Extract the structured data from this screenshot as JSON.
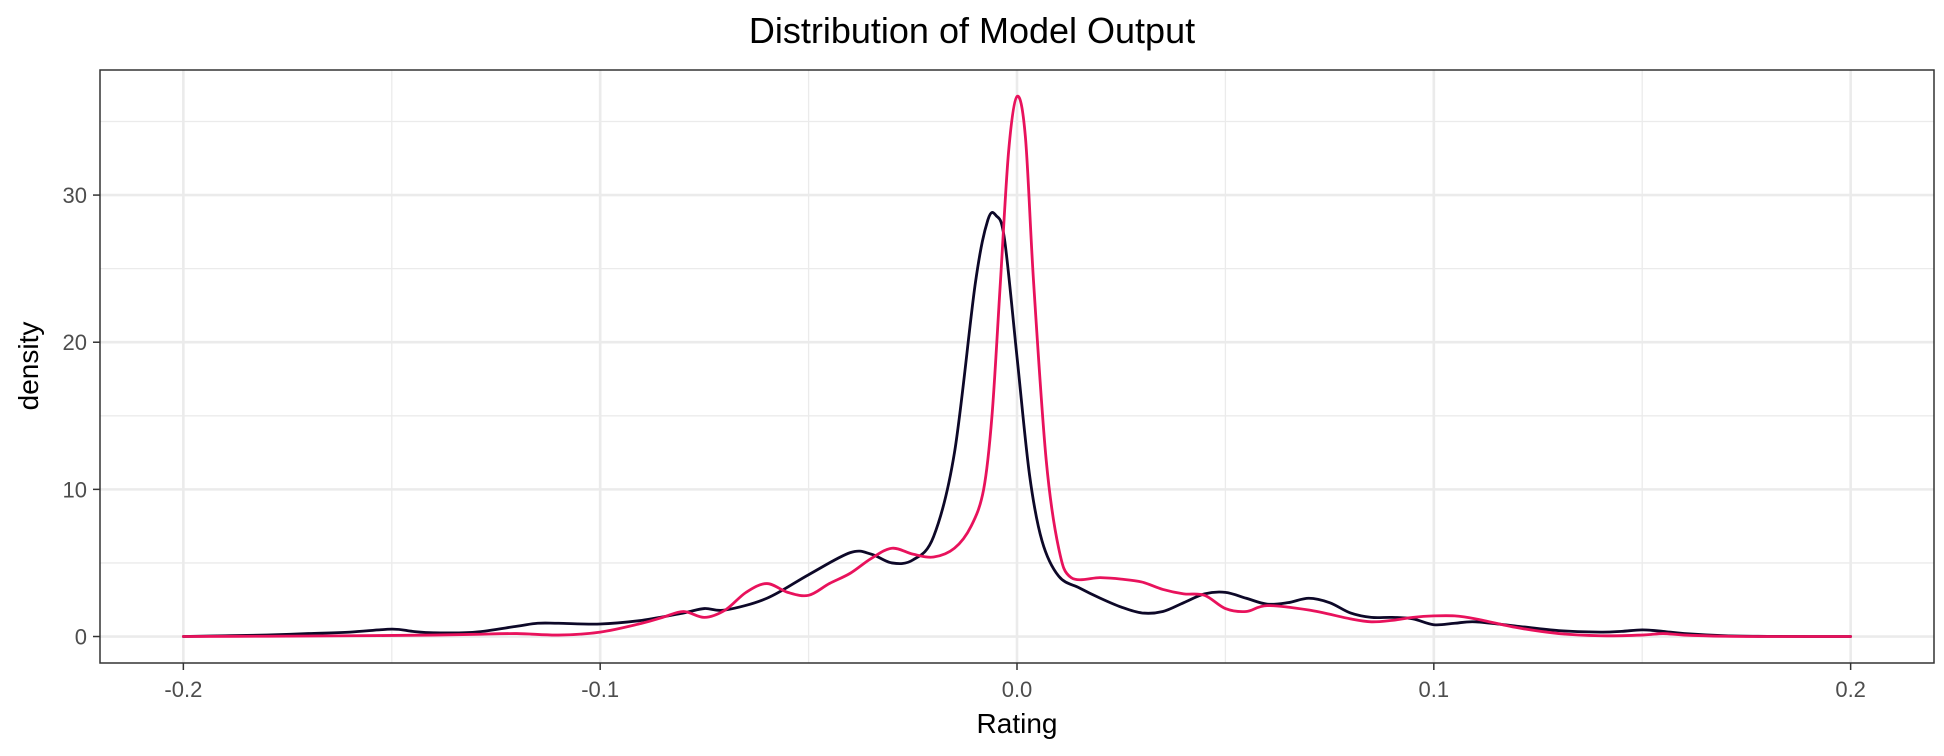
{
  "chart_data": {
    "type": "line",
    "title": "Distribution of Model Output",
    "xlabel": "Rating",
    "ylabel": "density",
    "xlim": [
      -0.22,
      0.22
    ],
    "ylim": [
      -1.8,
      38.5
    ],
    "x_ticks": [
      -0.2,
      -0.1,
      0.0,
      0.1,
      0.2
    ],
    "x_tick_labels": [
      "-0.2",
      "-0.1",
      "0.0",
      "0.1",
      "0.2"
    ],
    "y_ticks": [
      0,
      10,
      20,
      30
    ],
    "y_tick_labels": [
      "0",
      "10",
      "20",
      "30"
    ],
    "x_minor": [
      -0.15,
      -0.05,
      0.05,
      0.15
    ],
    "y_minor": [
      5,
      15,
      25,
      35
    ],
    "grid": true,
    "legend": "none",
    "series": [
      {
        "color": "#0d0828",
        "x": [
          -0.2,
          -0.19,
          -0.18,
          -0.17,
          -0.16,
          -0.15,
          -0.145,
          -0.14,
          -0.13,
          -0.12,
          -0.115,
          -0.11,
          -0.1,
          -0.09,
          -0.08,
          -0.075,
          -0.07,
          -0.06,
          -0.05,
          -0.04,
          -0.035,
          -0.03,
          -0.025,
          -0.02,
          -0.015,
          -0.01,
          -0.007,
          -0.005,
          -0.003,
          0.0,
          0.003,
          0.006,
          0.01,
          0.015,
          0.02,
          0.025,
          0.03,
          0.035,
          0.04,
          0.045,
          0.05,
          0.055,
          0.06,
          0.065,
          0.07,
          0.075,
          0.08,
          0.085,
          0.09,
          0.095,
          0.1,
          0.105,
          0.11,
          0.12,
          0.13,
          0.14,
          0.145,
          0.15,
          0.155,
          0.16,
          0.17,
          0.18,
          0.19,
          0.2
        ],
        "y": [
          0,
          0.05,
          0.1,
          0.2,
          0.3,
          0.5,
          0.35,
          0.25,
          0.3,
          0.7,
          0.9,
          0.9,
          0.85,
          1.1,
          1.6,
          1.9,
          1.8,
          2.6,
          4.2,
          5.7,
          5.6,
          5.0,
          5.2,
          6.8,
          12.5,
          24.0,
          28.3,
          28.6,
          27.0,
          19.0,
          11.0,
          6.5,
          4.1,
          3.3,
          2.6,
          2.0,
          1.6,
          1.7,
          2.3,
          2.9,
          3.0,
          2.6,
          2.2,
          2.3,
          2.6,
          2.3,
          1.6,
          1.3,
          1.3,
          1.2,
          0.8,
          0.9,
          1.0,
          0.7,
          0.4,
          0.3,
          0.35,
          0.45,
          0.35,
          0.2,
          0.05,
          0.01,
          0,
          0
        ]
      },
      {
        "color": "#e8125c",
        "x": [
          -0.2,
          -0.18,
          -0.16,
          -0.14,
          -0.13,
          -0.12,
          -0.11,
          -0.1,
          -0.09,
          -0.085,
          -0.08,
          -0.075,
          -0.07,
          -0.065,
          -0.06,
          -0.055,
          -0.05,
          -0.045,
          -0.04,
          -0.035,
          -0.03,
          -0.025,
          -0.02,
          -0.015,
          -0.011,
          -0.008,
          -0.006,
          -0.004,
          -0.002,
          0.0,
          0.002,
          0.004,
          0.007,
          0.01,
          0.013,
          0.02,
          0.025,
          0.03,
          0.035,
          0.04,
          0.045,
          0.05,
          0.055,
          0.06,
          0.07,
          0.08,
          0.085,
          0.09,
          0.095,
          0.1,
          0.105,
          0.11,
          0.12,
          0.13,
          0.14,
          0.15,
          0.155,
          0.16,
          0.17,
          0.18,
          0.2
        ],
        "y": [
          0,
          0.02,
          0.05,
          0.1,
          0.15,
          0.2,
          0.1,
          0.3,
          0.9,
          1.3,
          1.7,
          1.3,
          1.8,
          3.0,
          3.6,
          3.0,
          2.8,
          3.6,
          4.3,
          5.3,
          6.0,
          5.6,
          5.4,
          6.0,
          7.5,
          10.0,
          15.0,
          24.0,
          33.0,
          36.7,
          34.0,
          24.0,
          12.0,
          6.0,
          4.0,
          4.0,
          3.9,
          3.7,
          3.2,
          2.9,
          2.8,
          1.9,
          1.7,
          2.1,
          1.8,
          1.2,
          1.0,
          1.1,
          1.3,
          1.4,
          1.4,
          1.2,
          0.6,
          0.2,
          0.05,
          0.1,
          0.2,
          0.1,
          0.02,
          0,
          0
        ]
      }
    ]
  }
}
